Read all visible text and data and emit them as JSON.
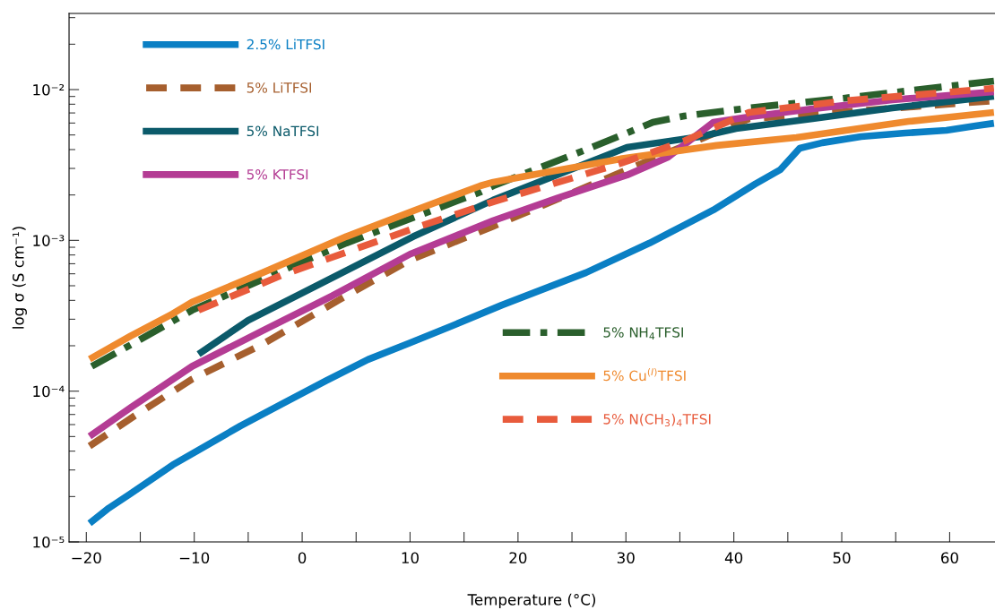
{
  "chart_data": {
    "type": "line",
    "xlabel": "Temperature (°C)",
    "ylabel": "log σ (S cm⁻¹)",
    "log": "y",
    "xlim": [
      -21.6,
      64.2
    ],
    "ylim": [
      1e-05,
      0.032
    ],
    "xticks": [
      {
        "value": -20,
        "label": "−20"
      },
      {
        "value": -15,
        "label": null
      },
      {
        "value": -10,
        "label": "−10"
      },
      {
        "value": -5,
        "label": null
      },
      0,
      {
        "value": 5,
        "label": null
      },
      10,
      {
        "value": 15,
        "label": null
      },
      20,
      {
        "value": 25,
        "label": null
      },
      30,
      {
        "value": 35,
        "label": null
      },
      40,
      {
        "value": 45,
        "label": null
      },
      50,
      {
        "value": 55,
        "label": null
      },
      60
    ],
    "yticks": [
      {
        "value": 1e-05,
        "label": "10⁻⁵"
      },
      {
        "value": 0.0001,
        "label": "10⁻⁴"
      },
      {
        "value": 0.001,
        "label": "10⁻³"
      },
      {
        "value": 0.01,
        "label": "10⁻²"
      }
    ],
    "grid": false,
    "legend": "top left",
    "marker": "none",
    "series": [
      {
        "name": "2.5% LiTFSI",
        "color": "#0a7fc4",
        "line_style": "solid",
        "x": [
          -19.7,
          -17.9,
          -15.9,
          -12.0,
          -5.7,
          -1.9,
          2.2,
          6.1,
          10.0,
          14.1,
          18.5,
          26.3,
          32.2,
          38.1,
          42.0,
          44.3,
          46.1,
          48.2,
          51.8,
          55.9,
          59.7,
          62.4,
          64.1
        ],
        "values": [
          1.33e-05,
          1.68e-05,
          2.09e-05,
          3.24e-05,
          5.89e-05,
          8.2e-05,
          0.000117,
          0.000162,
          0.000209,
          0.000275,
          0.000372,
          0.000611,
          0.00096,
          0.00159,
          0.00237,
          0.00294,
          0.00408,
          0.00444,
          0.00488,
          0.00515,
          0.00537,
          0.00575,
          0.00598
        ]
      },
      {
        "name": "5% LiTFSI",
        "color": "#a65f2e",
        "line_style": "dashed",
        "x": [
          -19.7,
          -15.5,
          -10.2,
          -3.65,
          3.5,
          10.0,
          17.7,
          30.1,
          41.4,
          64.1
        ],
        "values": [
          4.32e-05,
          6.88e-05,
          0.00012,
          0.000205,
          0.000406,
          0.00074,
          0.00124,
          0.00294,
          0.0064,
          0.00843
        ]
      },
      {
        "name": "5% NaTFSI",
        "color": "#0b5a6a",
        "line_style": "solid",
        "x": [
          -9.6,
          -5.0,
          0.0,
          10.3,
          17.7,
          30.1,
          36.9,
          40.2,
          47.3,
          54.7,
          64.1
        ],
        "values": [
          0.000176,
          0.000295,
          0.000447,
          0.00106,
          0.00185,
          0.00414,
          0.00488,
          0.00552,
          0.00641,
          0.00755,
          0.00902
        ]
      },
      {
        "name": "5% KTFSI",
        "color": "#b43c94",
        "line_style": "solid",
        "x": [
          -19.7,
          -15.9,
          -10.2,
          -3.65,
          2.8,
          10.0,
          17.7,
          23.6,
          30.1,
          33.9,
          38.1,
          41.4,
          47.3,
          54.7,
          64.1
        ],
        "values": [
          5.01e-05,
          7.76e-05,
          0.000146,
          0.000252,
          0.000429,
          0.00081,
          0.00135,
          0.0019,
          0.00271,
          0.00356,
          0.00607,
          0.00659,
          0.00745,
          0.00855,
          0.00966
        ]
      },
      {
        "name": "5% NH$_{4}$TFSI",
        "color": "#2a5f2c",
        "line_style": "dashdot",
        "x": [
          -19.5,
          -15.2,
          -10.2,
          0.0,
          4.1,
          16.5,
          17.7,
          26.0,
          30.1,
          32.5,
          35.4,
          41.4,
          50.3,
          64.1
        ],
        "values": [
          0.000146,
          0.000216,
          0.000344,
          0.00072,
          0.00096,
          0.00209,
          0.0023,
          0.00392,
          0.00515,
          0.00607,
          0.00668,
          0.00755,
          0.00879,
          0.0114
        ]
      },
      {
        "name": "5% Cu$^{(I)}$TFSI",
        "color": "#ef8a2e",
        "line_style": "solid",
        "x": [
          -19.7,
          -15.9,
          -12.0,
          -10.2,
          -3.65,
          4.1,
          10.5,
          16.5,
          17.7,
          21.2,
          29.5,
          38.4,
          45.8,
          56.2,
          64.1
        ],
        "values": [
          0.000163,
          0.000232,
          0.000326,
          0.00039,
          0.000611,
          0.00106,
          0.00159,
          0.0023,
          0.00243,
          0.00271,
          0.00347,
          0.00426,
          0.00481,
          0.00615,
          0.00706
        ]
      },
      {
        "name": "5% N(CH$_{3}$)$_{4}$TFSI",
        "color": "#e85b3c",
        "line_style": "dashed",
        "x": [
          -9.6,
          -1.9,
          4.6,
          10.5,
          17.7,
          29.5,
          35.4,
          41.4,
          50.3,
          64.1
        ],
        "values": [
          0.000344,
          0.000587,
          0.00086,
          0.00121,
          0.0018,
          0.00324,
          0.00456,
          0.00706,
          0.00843,
          0.0102
        ]
      }
    ]
  }
}
